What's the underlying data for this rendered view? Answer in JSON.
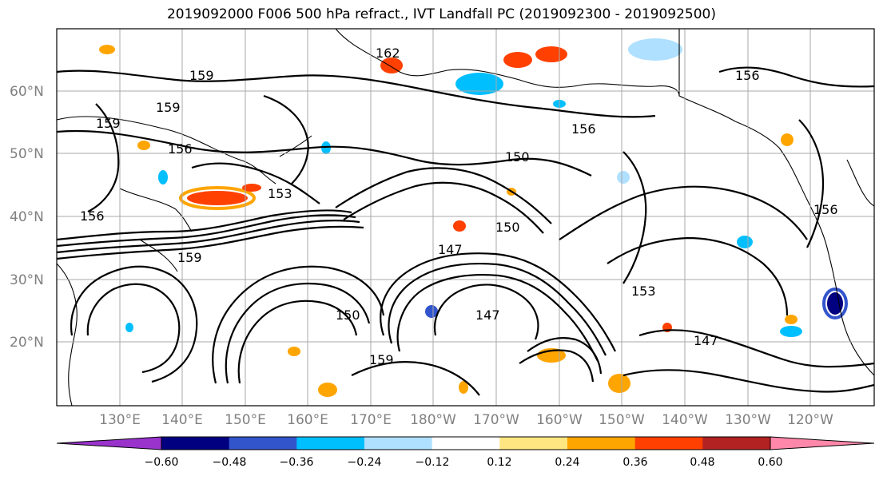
{
  "title": "2019092000 F006 500 hPa refract., IVT Landfall PC (2019092300 - 2019092500)",
  "map": {
    "lat_labels": [
      "60°N",
      "50°N",
      "40°N",
      "30°N",
      "20°N"
    ],
    "lon_labels": [
      "130°E",
      "140°E",
      "150°E",
      "160°E",
      "170°E",
      "180°W",
      "170°W",
      "160°W",
      "150°W",
      "140°W",
      "130°W",
      "120°W"
    ],
    "contour_labels": [
      "162",
      "159",
      "159",
      "159",
      "156",
      "156",
      "156",
      "156",
      "153",
      "150",
      "150",
      "147",
      "147",
      "147",
      "159",
      "156",
      "153",
      "150",
      "159"
    ],
    "gridlines": true
  },
  "colorbar": {
    "ticks": [
      "−0.60",
      "−0.48",
      "−0.36",
      "−0.24",
      "−0.12",
      "0.12",
      "0.24",
      "0.36",
      "0.48",
      "0.60"
    ],
    "colors": [
      "#9933cc",
      "#000080",
      "#3355cc",
      "#00bfff",
      "#b0e0ff",
      "#ffffff",
      "#ffe680",
      "#ffa500",
      "#ff4000",
      "#b22222",
      "#ff88aa"
    ],
    "extend": "both"
  }
}
